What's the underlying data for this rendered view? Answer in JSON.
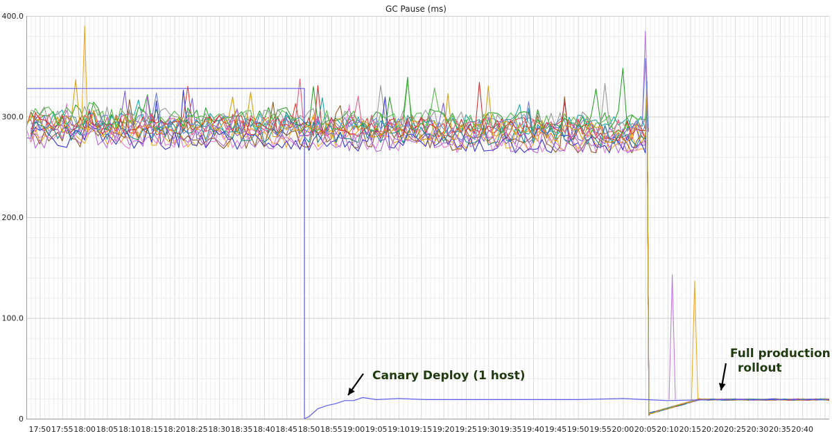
{
  "chart_data": {
    "type": "line",
    "title": "GC Pause (ms)",
    "xlabel": "",
    "ylabel": "",
    "ylim": [
      0,
      400
    ],
    "y_ticks": [
      "0",
      "100.0",
      "200.0",
      "300.0",
      "400.0"
    ],
    "x_ticks": [
      "17:50",
      "17:55",
      "18:00",
      "18:05",
      "18:10",
      "18:15",
      "18:20",
      "18:25",
      "18:30",
      "18:35",
      "18:40",
      "18:45",
      "18:50",
      "18:55",
      "19:00",
      "19:05",
      "19:10",
      "19:15",
      "19:20",
      "19:25",
      "19:30",
      "19:35",
      "19:40",
      "19:45",
      "19:50",
      "19:55",
      "20:00",
      "20:05",
      "20:10",
      "20:15",
      "20:20",
      "20:25",
      "20:30",
      "20:35",
      "20:40"
    ],
    "x_range": [
      "17:47",
      "20:46"
    ],
    "grid": true,
    "legend": "none",
    "series_count": 16,
    "baseline_gc_pause_range_ms": [
      270,
      310
    ],
    "post_rollout_gc_pause_ms": 19,
    "events": {
      "canary_deploy": "18:50",
      "full_rollout": "20:05"
    },
    "spikes": [
      {
        "time": "18:00",
        "value": 390,
        "color": "#f5a623"
      },
      {
        "time": "20:05",
        "value": 385,
        "color": "#c07ae6"
      },
      {
        "time": "20:05",
        "value": 358,
        "color": "#6b7fd6"
      },
      {
        "time": "20:11",
        "value": 143,
        "color": "#c07ae6"
      },
      {
        "time": "20:16",
        "value": 137,
        "color": "#f5a623"
      }
    ],
    "canary_series": {
      "color": "#5c5cec",
      "points": [
        [
          "17:47",
          328
        ],
        [
          "18:49",
          328
        ],
        [
          "18:49",
          0
        ],
        [
          "18:50",
          2
        ],
        [
          "18:52",
          10
        ],
        [
          "18:54",
          13
        ],
        [
          "18:56",
          15
        ],
        [
          "18:58",
          18
        ],
        [
          "19:00",
          18
        ],
        [
          "19:02",
          21
        ],
        [
          "19:05",
          19
        ],
        [
          "19:10",
          20
        ],
        [
          "19:16",
          19
        ],
        [
          "19:20",
          19
        ],
        [
          "19:30",
          19
        ],
        [
          "19:40",
          19
        ],
        [
          "19:50",
          19
        ],
        [
          "20:00",
          20
        ],
        [
          "20:05",
          19
        ],
        [
          "20:10",
          18
        ],
        [
          "20:20",
          19
        ],
        [
          "20:30",
          19
        ],
        [
          "20:46",
          19
        ]
      ]
    },
    "series_colors": [
      "#e63b2e",
      "#2ca02c",
      "#1aa5a5",
      "#7d5cd6",
      "#f5a623",
      "#999999",
      "#e87dd6",
      "#3333cc",
      "#8c5a2b",
      "#e85a7a",
      "#6b7fd6",
      "#cc3333",
      "#55b94a",
      "#b06ad6",
      "#228b8b",
      "#d4a017"
    ],
    "annotations": [
      {
        "text": "Canary Deploy (1 host)"
      },
      {
        "text": "Full production"
      },
      {
        "text": "rollout"
      }
    ]
  }
}
